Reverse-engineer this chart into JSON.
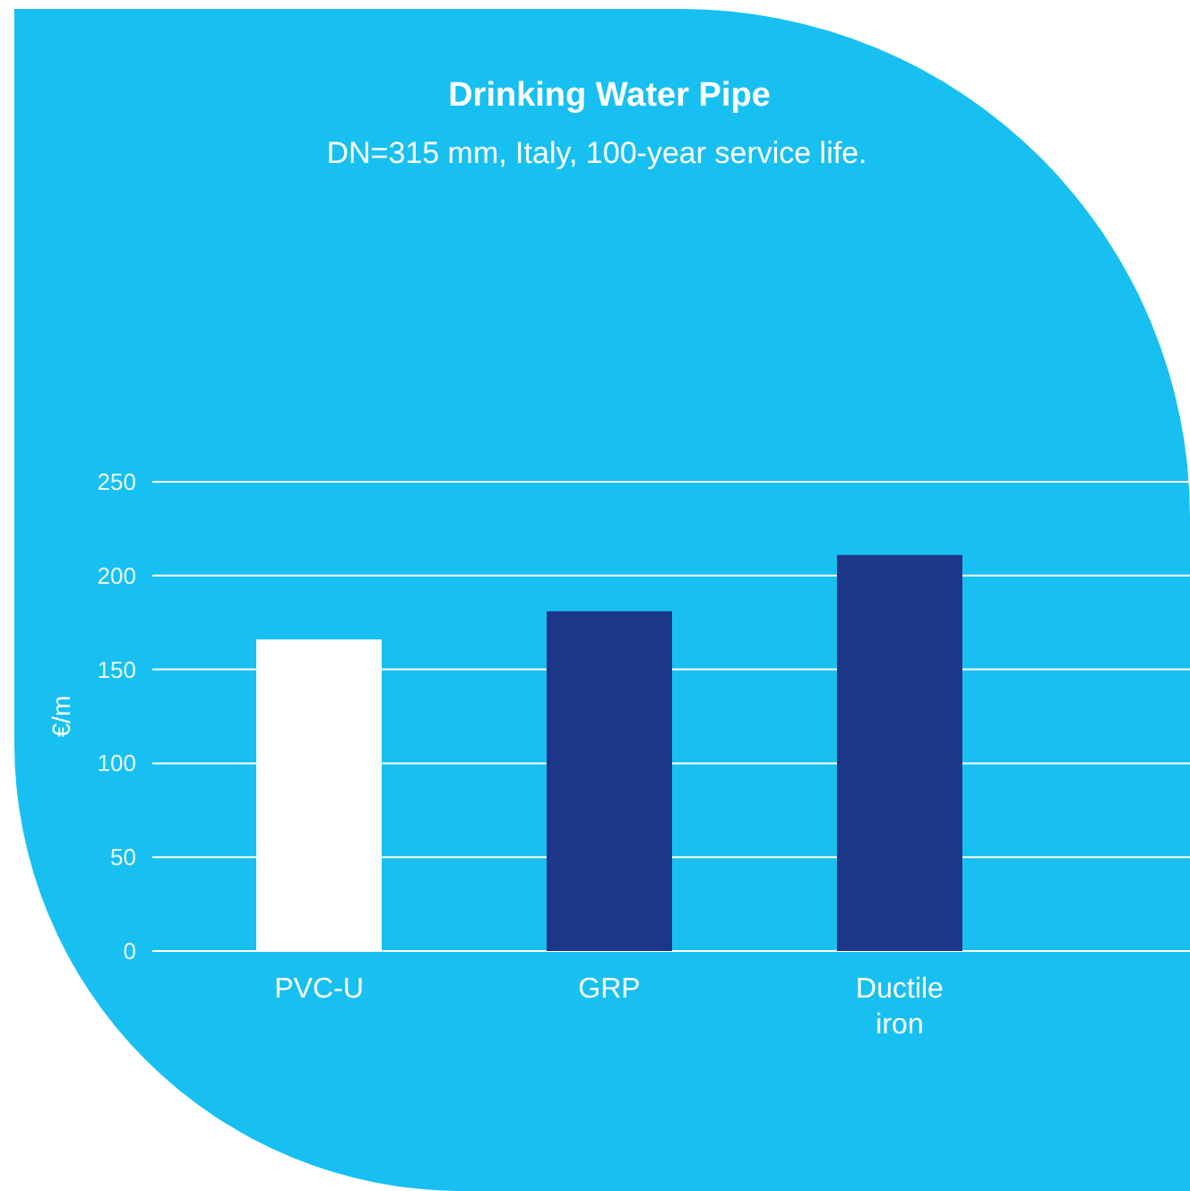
{
  "chart_data": {
    "type": "bar",
    "title": "Drinking Water Pipe",
    "subtitle": "DN=315 mm, Italy, 100-year service life.",
    "ylabel": "€/m",
    "categories": [
      "PVC-U",
      "GRP",
      "Ductile iron"
    ],
    "values": [
      166,
      181,
      211
    ],
    "colors": [
      "#ffffff",
      "#1d3688",
      "#1d3688"
    ],
    "ylim": [
      0,
      250
    ],
    "yticks": [
      0,
      50,
      100,
      150,
      200,
      250
    ],
    "grid": "y"
  }
}
